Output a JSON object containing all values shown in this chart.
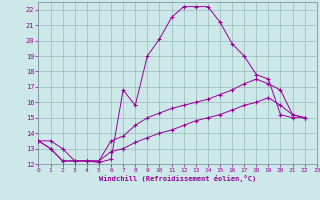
{
  "xlabel": "Windchill (Refroidissement éolien,°C)",
  "bg_color": "#cce8e8",
  "line_color": "#990099",
  "grid_color": "#99bbbb",
  "xlim": [
    0,
    23
  ],
  "ylim": [
    12,
    22.5
  ],
  "yticks": [
    12,
    13,
    14,
    15,
    16,
    17,
    18,
    19,
    20,
    21,
    22
  ],
  "xticks": [
    0,
    1,
    2,
    3,
    4,
    5,
    6,
    7,
    8,
    9,
    10,
    11,
    12,
    13,
    14,
    15,
    16,
    17,
    18,
    19,
    20,
    21,
    22,
    23
  ],
  "lines": [
    {
      "x": [
        0,
        1,
        2,
        3,
        4,
        5,
        6,
        7,
        8,
        9,
        10,
        11,
        12,
        13,
        14,
        15,
        16,
        17,
        18,
        19,
        20,
        21,
        22
      ],
      "y": [
        13.5,
        13.5,
        13.0,
        12.2,
        12.2,
        12.1,
        12.3,
        16.8,
        15.8,
        19.0,
        20.1,
        21.5,
        22.2,
        22.2,
        22.2,
        21.2,
        19.8,
        19.0,
        17.8,
        17.5,
        15.2,
        15.0,
        15.0
      ],
      "marker": "+"
    },
    {
      "x": [
        0,
        1,
        2,
        3,
        4,
        5,
        6,
        7,
        8,
        9,
        10,
        11,
        12,
        13,
        14,
        15,
        16,
        17,
        18,
        19,
        20,
        21,
        22
      ],
      "y": [
        13.5,
        13.0,
        12.2,
        12.2,
        12.2,
        12.2,
        13.5,
        13.8,
        14.5,
        15.0,
        15.3,
        15.6,
        15.8,
        16.0,
        16.2,
        16.5,
        16.8,
        17.2,
        17.5,
        17.2,
        16.8,
        15.2,
        15.0
      ],
      "marker": "+"
    },
    {
      "x": [
        0,
        1,
        2,
        3,
        4,
        5,
        6,
        7,
        8,
        9,
        10,
        11,
        12,
        13,
        14,
        15,
        16,
        17,
        18,
        19,
        20,
        21,
        22
      ],
      "y": [
        13.5,
        13.0,
        12.2,
        12.2,
        12.2,
        12.2,
        12.8,
        13.0,
        13.4,
        13.7,
        14.0,
        14.2,
        14.5,
        14.8,
        15.0,
        15.2,
        15.5,
        15.8,
        16.0,
        16.3,
        15.8,
        15.2,
        15.0
      ],
      "marker": "+"
    }
  ]
}
